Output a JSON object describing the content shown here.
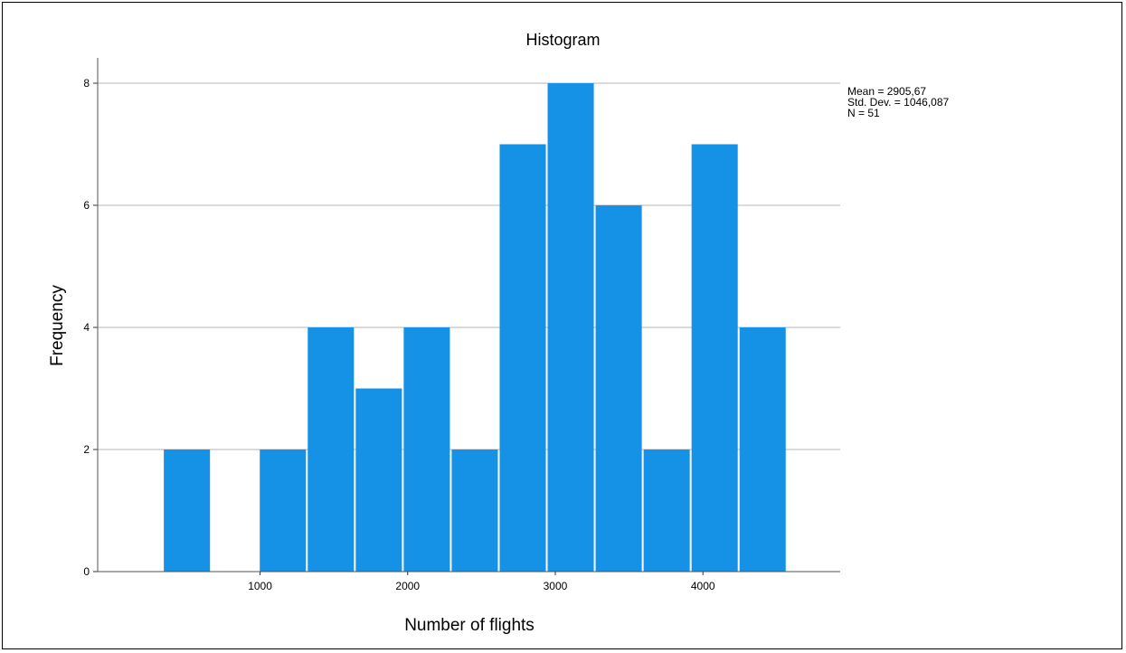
{
  "chart_data": {
    "type": "bar",
    "title": "Histogram",
    "xlabel": "Number of flights",
    "ylabel": "Frequency",
    "bins": [
      {
        "start": 342,
        "end": 667,
        "count": 2
      },
      {
        "start": 667,
        "end": 992,
        "count": 0
      },
      {
        "start": 992,
        "end": 1317,
        "count": 2
      },
      {
        "start": 1317,
        "end": 1642,
        "count": 4
      },
      {
        "start": 1642,
        "end": 1967,
        "count": 3
      },
      {
        "start": 1967,
        "end": 2292,
        "count": 4
      },
      {
        "start": 2292,
        "end": 2617,
        "count": 2
      },
      {
        "start": 2617,
        "end": 2942,
        "count": 7
      },
      {
        "start": 2942,
        "end": 3267,
        "count": 8
      },
      {
        "start": 3267,
        "end": 3592,
        "count": 6
      },
      {
        "start": 3592,
        "end": 3917,
        "count": 2
      },
      {
        "start": 3917,
        "end": 4242,
        "count": 7
      },
      {
        "start": 4242,
        "end": 4567,
        "count": 4
      }
    ],
    "xlim": [
      -100,
      4930
    ],
    "ylim": [
      0,
      8
    ],
    "xticks": [
      1000,
      2000,
      3000,
      4000
    ],
    "yticks": [
      0,
      2,
      4,
      6,
      8
    ],
    "grid": "horizontal",
    "bar_color": "#1591E5",
    "stats": [
      "Mean = 2905,67",
      "Std. Dev. = 1046,087",
      "N = 51"
    ]
  }
}
